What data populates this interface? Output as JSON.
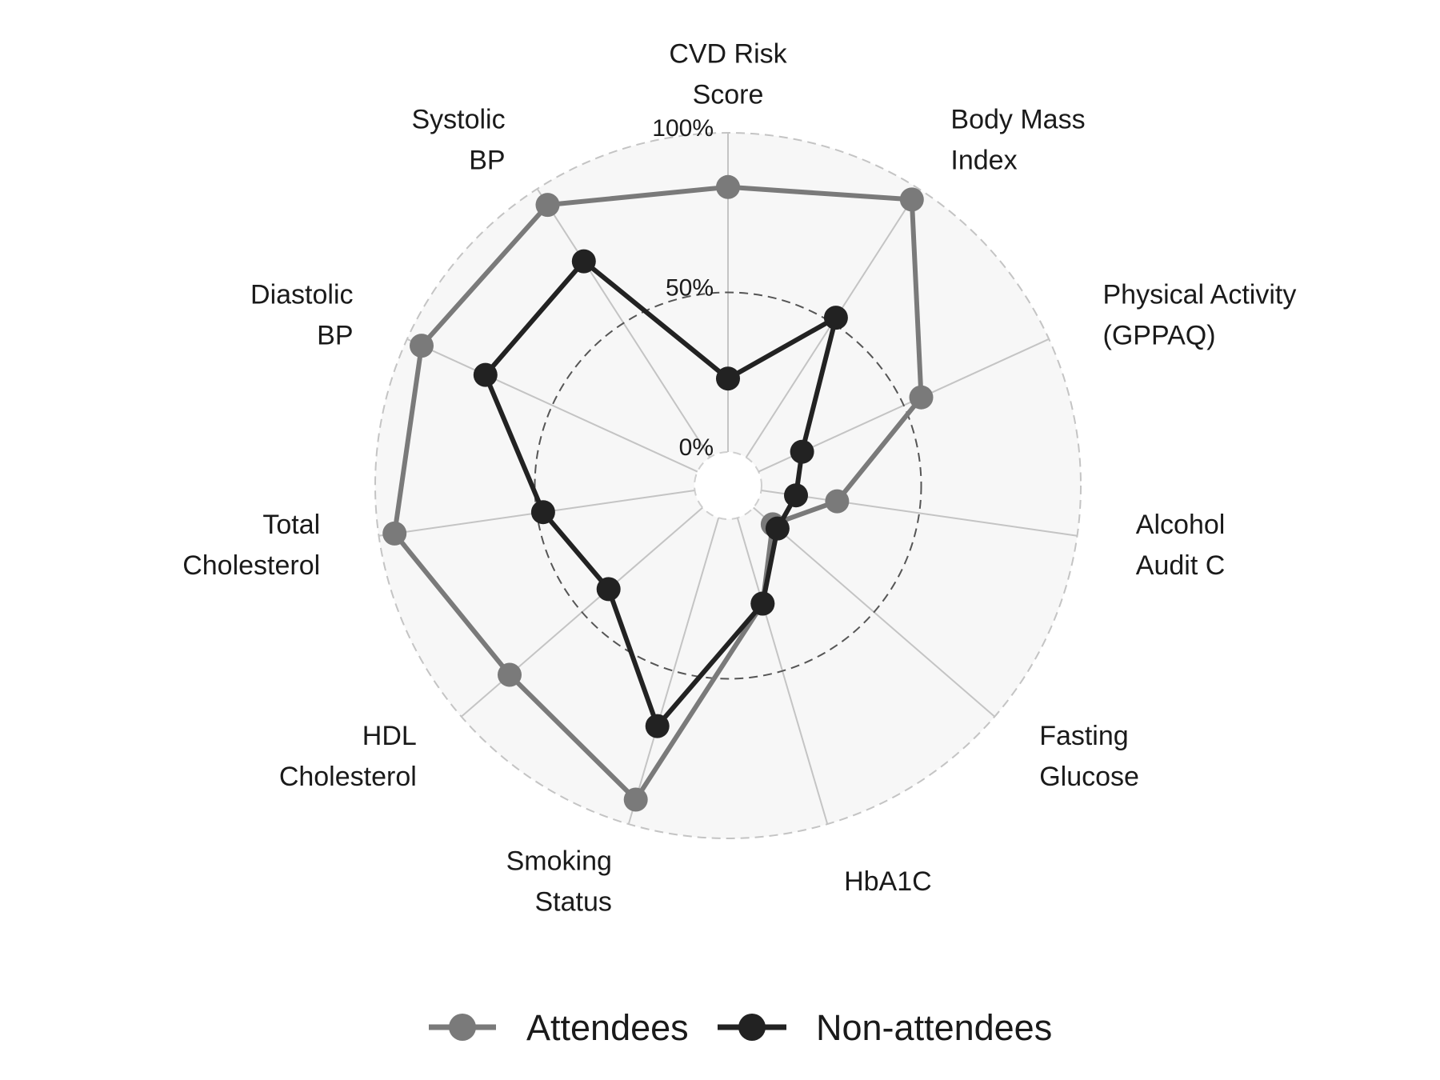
{
  "chart_data": {
    "type": "radar",
    "title": "",
    "axes": [
      "CVD Risk Score",
      "Body Mass Index",
      "Physical Activity (GPPAQ)",
      "Alcohol Audit C",
      "Fasting Glucose",
      "HbA1C",
      "Smoking Status",
      "HDL Cholesterol",
      "Total Cholesterol",
      "Diastolic BP",
      "Systolic BP"
    ],
    "axis_label_lines": [
      [
        "CVD Risk",
        "Score"
      ],
      [
        "Body Mass",
        "Index"
      ],
      [
        "Physical Activity",
        "(GPPAQ)"
      ],
      [
        "Alcohol",
        "Audit C"
      ],
      [
        "Fasting",
        "Glucose"
      ],
      [
        "HbA1C"
      ],
      [
        "Smoking",
        "Status"
      ],
      [
        "HDL",
        "Cholesterol"
      ],
      [
        "Total",
        "Cholesterol"
      ],
      [
        "Diastolic",
        "BP"
      ],
      [
        "Systolic",
        "BP"
      ]
    ],
    "grid_labels": [
      "0%",
      "50%",
      "100%"
    ],
    "range": [
      0,
      100
    ],
    "series": [
      {
        "name": "Attendees",
        "color": "#7a7a7a",
        "values": [
          83,
          96,
          56,
          24,
          8,
          28,
          92,
          80,
          95,
          95,
          94
        ]
      },
      {
        "name": "Non-attendees",
        "color": "#222222",
        "values": [
          23,
          52,
          15,
          11,
          10,
          28,
          68,
          39,
          48,
          73,
          73
        ]
      }
    ],
    "legend_position": "bottom"
  }
}
